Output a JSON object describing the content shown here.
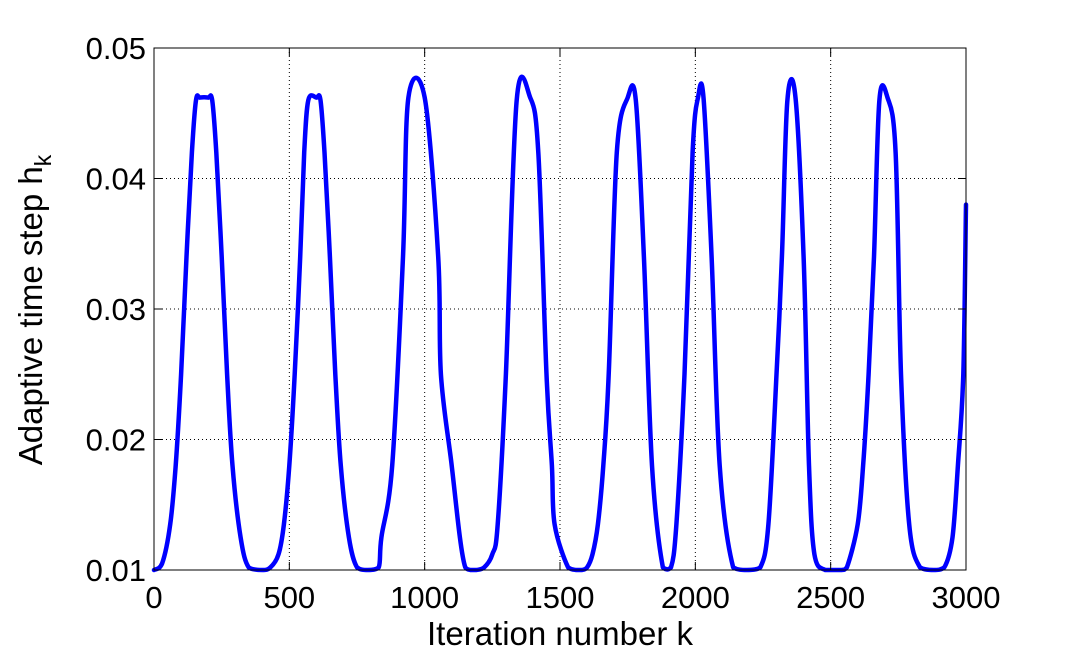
{
  "chart_data": {
    "type": "line",
    "xlabel": "Iteration number k",
    "ylabel_main": "Adaptive time step h",
    "ylabel_subscript": "k",
    "xlim": [
      0,
      3000
    ],
    "ylim": [
      0.01,
      0.05
    ],
    "xticks": [
      0,
      500,
      1000,
      1500,
      2000,
      2500,
      3000
    ],
    "xtick_labels": [
      "0",
      "500",
      "1000",
      "1500",
      "2000",
      "2500",
      "3000"
    ],
    "yticks": [
      0.01,
      0.02,
      0.03,
      0.04,
      0.05
    ],
    "ytick_labels": [
      "0.01",
      "0.02",
      "0.03",
      "0.04",
      "0.05"
    ],
    "grid": true,
    "grid_style": "dotted",
    "line_color": "#0000ff",
    "series": [
      {
        "x": [
          0,
          30,
          60,
          80,
          100,
          120,
          140,
          155,
          170,
          200,
          215,
          230,
          250,
          270,
          290,
          320,
          350,
          400,
          430,
          460,
          480,
          500,
          520,
          540,
          555,
          570,
          600,
          615,
          630,
          650,
          670,
          690,
          720,
          750,
          790,
          830,
          840,
          880,
          920,
          940,
          1000,
          1050,
          1060,
          1100,
          1130,
          1150,
          1170,
          1190,
          1220,
          1250,
          1270,
          1300,
          1340,
          1390,
          1420,
          1450,
          1470,
          1480,
          1530,
          1560,
          1580,
          1600,
          1620,
          1640,
          1660,
          1680,
          1710,
          1750,
          1780,
          1810,
          1840,
          1880,
          1910,
          1930,
          1960,
          1990,
          2010,
          2030,
          2060,
          2090,
          2140,
          2190,
          2240,
          2270,
          2300,
          2320,
          2340,
          2370,
          2400,
          2420,
          2440,
          2480,
          2540,
          2560,
          2600,
          2620,
          2640,
          2660,
          2680,
          2710,
          2740,
          2760,
          2790,
          2830,
          2880,
          2920,
          2950,
          2970,
          2990,
          3000
        ],
        "y": [
          0.01,
          0.0105,
          0.0135,
          0.018,
          0.025,
          0.034,
          0.042,
          0.046,
          0.0462,
          0.0462,
          0.046,
          0.042,
          0.034,
          0.025,
          0.018,
          0.0125,
          0.0102,
          0.01,
          0.0102,
          0.0112,
          0.0135,
          0.018,
          0.025,
          0.034,
          0.042,
          0.046,
          0.0462,
          0.046,
          0.042,
          0.034,
          0.025,
          0.018,
          0.0125,
          0.0102,
          0.01,
          0.0102,
          0.0125,
          0.018,
          0.034,
          0.0462,
          0.0462,
          0.034,
          0.025,
          0.018,
          0.0125,
          0.0102,
          0.01,
          0.01,
          0.0102,
          0.0112,
          0.0135,
          0.025,
          0.046,
          0.0462,
          0.042,
          0.025,
          0.018,
          0.0135,
          0.0102,
          0.01,
          0.01,
          0.0102,
          0.0112,
          0.0135,
          0.018,
          0.025,
          0.042,
          0.0462,
          0.046,
          0.034,
          0.018,
          0.0102,
          0.0102,
          0.0135,
          0.025,
          0.042,
          0.0462,
          0.0462,
          0.034,
          0.018,
          0.0102,
          0.01,
          0.0102,
          0.0135,
          0.025,
          0.034,
          0.046,
          0.0462,
          0.034,
          0.018,
          0.0112,
          0.01,
          0.01,
          0.0102,
          0.0135,
          0.018,
          0.025,
          0.034,
          0.046,
          0.0462,
          0.042,
          0.025,
          0.0135,
          0.0102,
          0.01,
          0.0102,
          0.0125,
          0.018,
          0.025,
          0.038
        ]
      }
    ]
  }
}
